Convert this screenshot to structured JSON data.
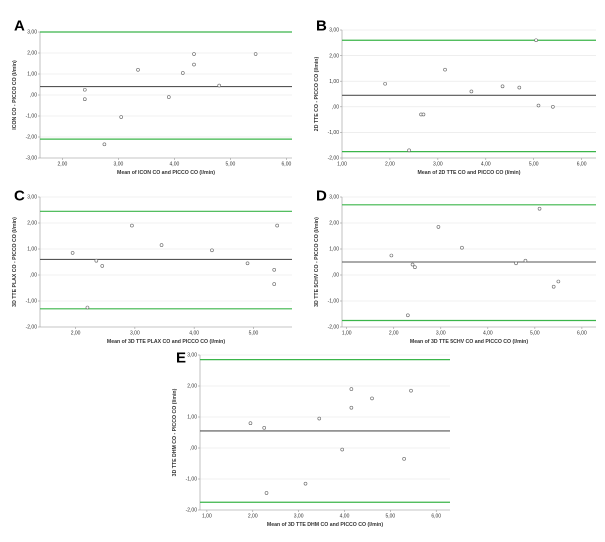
{
  "chart_data": [
    {
      "panel": "A",
      "type": "scatter",
      "xlabel": "Mean of ICON CO and PICCO CO (l/min)",
      "ylabel": "ICON CO - PICCO CO (l/min)",
      "xlim": [
        1.6,
        6.1
      ],
      "ylim": [
        -3.0,
        3.0
      ],
      "xticks": [
        "2,00",
        "3,00",
        "4,00",
        "5,00",
        "6,00"
      ],
      "xtick_values": [
        2,
        3,
        4,
        5,
        6
      ],
      "yticks": [
        "3,00",
        "2,00",
        "1,00",
        ",00",
        "-1,00",
        "-2,00",
        "-3,00"
      ],
      "ytick_values": [
        3,
        2,
        1,
        0,
        -1,
        -2,
        -3
      ],
      "mean_line": 0.4,
      "loa_upper": 3.0,
      "loa_lower": -2.1,
      "points": [
        [
          2.4,
          0.25
        ],
        [
          2.4,
          -0.2
        ],
        [
          2.75,
          -2.35
        ],
        [
          3.05,
          -1.05
        ],
        [
          3.35,
          1.2
        ],
        [
          3.9,
          -0.1
        ],
        [
          4.15,
          1.05
        ],
        [
          4.35,
          1.95
        ],
        [
          4.35,
          1.45
        ],
        [
          4.8,
          0.45
        ],
        [
          5.45,
          1.95
        ]
      ]
    },
    {
      "panel": "B",
      "type": "scatter",
      "xlabel": "Mean of 2D TTE CO and PICCO CO (l/min)",
      "ylabel": "2D TTE CO - PICCO CO (l/min)",
      "xlim": [
        1.0,
        6.3
      ],
      "ylim": [
        -2.0,
        3.0
      ],
      "xticks": [
        "1,00",
        "2,00",
        "3,00",
        "4,00",
        "5,00",
        "6,00"
      ],
      "xtick_values": [
        1,
        2,
        3,
        4,
        5,
        6
      ],
      "yticks": [
        "3,00",
        "2,00",
        "1,00",
        ",00",
        "-1,00",
        "-2,00"
      ],
      "ytick_values": [
        3,
        2,
        1,
        0,
        -1,
        -2
      ],
      "mean_line": 0.45,
      "loa_upper": 2.6,
      "loa_lower": -1.75,
      "points": [
        [
          1.9,
          0.9
        ],
        [
          2.65,
          -0.3
        ],
        [
          2.7,
          -0.3
        ],
        [
          2.4,
          -1.7
        ],
        [
          3.15,
          1.45
        ],
        [
          3.7,
          0.6
        ],
        [
          4.35,
          0.8
        ],
        [
          4.7,
          0.75
        ],
        [
          5.05,
          2.6
        ],
        [
          5.1,
          0.05
        ],
        [
          5.4,
          0.0
        ]
      ]
    },
    {
      "panel": "C",
      "type": "scatter",
      "xlabel": "Mean of 3D TTE PLAX CO and PICCO CO (l/min)",
      "ylabel": "3D TTE PLAX CO - PICCO CO (l/min)",
      "xlim": [
        1.4,
        5.65
      ],
      "ylim": [
        -2.0,
        3.0
      ],
      "xticks": [
        "2,00",
        "3,00",
        "4,00",
        "5,00"
      ],
      "xtick_values": [
        2,
        3,
        4,
        5
      ],
      "yticks": [
        "3,00",
        "2,00",
        "1,00",
        ",00",
        "-1,00",
        "-2,00"
      ],
      "ytick_values": [
        3,
        2,
        1,
        0,
        -1,
        -2
      ],
      "mean_line": 0.6,
      "loa_upper": 2.45,
      "loa_lower": -1.3,
      "points": [
        [
          1.95,
          0.85
        ],
        [
          2.2,
          -1.25
        ],
        [
          2.35,
          0.55
        ],
        [
          2.45,
          0.35
        ],
        [
          2.95,
          1.9
        ],
        [
          3.45,
          1.15
        ],
        [
          4.3,
          0.95
        ],
        [
          4.9,
          0.45
        ],
        [
          5.35,
          0.2
        ],
        [
          5.35,
          -0.35
        ],
        [
          5.4,
          1.9
        ]
      ]
    },
    {
      "panel": "D",
      "type": "scatter",
      "xlabel": "Mean of 3D TTE 5CHV CO and PICCO CO (l/min)",
      "ylabel": "3D TTE 5CHV CO - PICCO CO (l/min)",
      "xlim": [
        0.9,
        6.3
      ],
      "ylim": [
        -2.0,
        3.0
      ],
      "xticks": [
        "1,00",
        "2,00",
        "3,00",
        "4,00",
        "5,00",
        "6,00"
      ],
      "xtick_values": [
        1,
        2,
        3,
        4,
        5,
        6
      ],
      "yticks": [
        "3,00",
        "2,00",
        "1,00",
        ",00",
        "-1,00",
        "-2,00"
      ],
      "ytick_values": [
        3,
        2,
        1,
        0,
        -1,
        -2
      ],
      "mean_line": 0.5,
      "loa_upper": 2.7,
      "loa_lower": -1.75,
      "points": [
        [
          1.95,
          0.75
        ],
        [
          2.3,
          -1.55
        ],
        [
          2.4,
          0.4
        ],
        [
          2.45,
          0.3
        ],
        [
          2.95,
          1.85
        ],
        [
          3.45,
          1.05
        ],
        [
          4.6,
          0.45
        ],
        [
          4.8,
          0.55
        ],
        [
          5.1,
          2.55
        ],
        [
          5.4,
          -0.45
        ],
        [
          5.5,
          -0.25
        ]
      ]
    },
    {
      "panel": "E",
      "type": "scatter",
      "xlabel": "Mean of 3D TTE DHM CO and PICCO CO (l/min)",
      "ylabel": "3D TTE DHM CO - PICCO CO (l/min)",
      "xlim": [
        0.85,
        6.3
      ],
      "ylim": [
        -2.0,
        3.0
      ],
      "xticks": [
        "1,00",
        "2,00",
        "3,00",
        "4,00",
        "5,00",
        "6,00"
      ],
      "xtick_values": [
        1,
        2,
        3,
        4,
        5,
        6
      ],
      "yticks": [
        "3,00",
        "2,00",
        "1,00",
        ",00",
        "-1,00",
        "-2,00"
      ],
      "ytick_values": [
        3,
        2,
        1,
        0,
        -1,
        -2
      ],
      "mean_line": 0.55,
      "loa_upper": 2.85,
      "loa_lower": -1.75,
      "points": [
        [
          1.95,
          0.8
        ],
        [
          2.25,
          0.65
        ],
        [
          2.3,
          -1.45
        ],
        [
          3.15,
          -1.15
        ],
        [
          3.45,
          0.95
        ],
        [
          3.95,
          -0.05
        ],
        [
          4.15,
          1.3
        ],
        [
          4.15,
          1.9
        ],
        [
          4.6,
          1.6
        ],
        [
          5.3,
          -0.35
        ],
        [
          5.45,
          1.85
        ]
      ]
    }
  ],
  "colors": {
    "loa_line": "#3bb54a",
    "mean_line": "#555555",
    "point_edge": "#666666",
    "tick_text": "#333333"
  }
}
